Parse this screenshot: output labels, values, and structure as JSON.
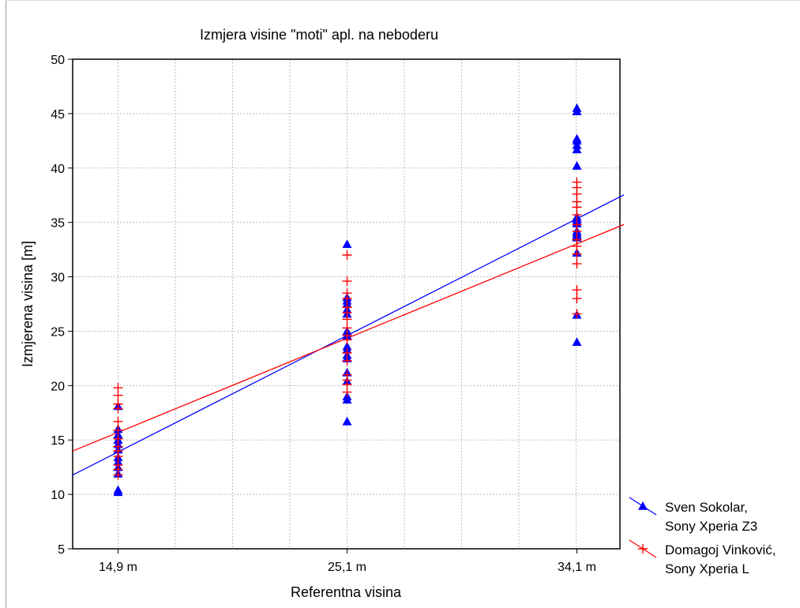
{
  "chart_data": {
    "type": "scatter",
    "title": "Izmjera visine \"moti\" apl. na neboderu",
    "xlabel": "Referentna visina",
    "ylabel": "Izmjerena visina [m]",
    "categories": [
      "14,9 m",
      "25,1 m",
      "34,1 m"
    ],
    "ylim": [
      5,
      50
    ],
    "yticks": [
      "5",
      "10",
      "15",
      "20",
      "25",
      "30",
      "35",
      "40",
      "45",
      "50"
    ],
    "grid": true,
    "legend_position": "right-bottom-outside",
    "series": [
      {
        "name": "Sven Sokolar,\nSony Xperia Z3",
        "legend_lines": [
          "Sven Sokolar,",
          "Sony Xperia Z3"
        ],
        "marker": "triangle",
        "color": "#0000ff",
        "points": {
          "14,9 m": [
            10.2,
            10.4,
            11.9,
            12.5,
            13.0,
            13.4,
            14.1,
            14.6,
            15.0,
            15.5,
            16.0,
            18.1
          ],
          "25,1 m": [
            16.7,
            18.7,
            19.0,
            20.4,
            21.2,
            22.5,
            22.8,
            23.3,
            23.6,
            24.6,
            25.0,
            26.6,
            27.0,
            27.5,
            27.8,
            28.1,
            33.0
          ],
          "34,1 m": [
            24.0,
            26.5,
            32.2,
            33.6,
            33.8,
            34.0,
            34.2,
            34.9,
            35.1,
            35.3,
            35.5,
            40.2,
            41.7,
            42.1,
            42.5,
            42.7,
            45.2,
            45.5
          ]
        },
        "fit_line": {
          "intercept": 13.9,
          "slope_per_category": 10.7
        }
      },
      {
        "name": "Domagoj Vinković,\nSony Xperia L",
        "legend_lines": [
          "Domagoj Vinković,",
          "Sony Xperia L"
        ],
        "marker": "plus",
        "color": "#ff0000",
        "points": {
          "14,9 m": [
            11.8,
            12.3,
            12.7,
            13.5,
            14.0,
            14.4,
            15.1,
            15.9,
            16.7,
            17.9,
            18.3,
            19.1,
            19.8
          ],
          "25,1 m": [
            19.4,
            20.1,
            20.5,
            21.0,
            22.3,
            23.0,
            24.2,
            24.6,
            25.3,
            26.1,
            26.7,
            27.2,
            28.0,
            28.5,
            29.6,
            32.0
          ],
          "34,1 m": [
            26.6,
            28.0,
            28.8,
            31.2,
            32.1,
            32.8,
            33.4,
            34.2,
            34.8,
            35.7,
            36.4,
            36.9,
            37.6,
            38.2,
            38.7
          ]
        },
        "fit_line": {
          "intercept": 15.7,
          "slope_per_category": 8.65
        }
      }
    ]
  }
}
